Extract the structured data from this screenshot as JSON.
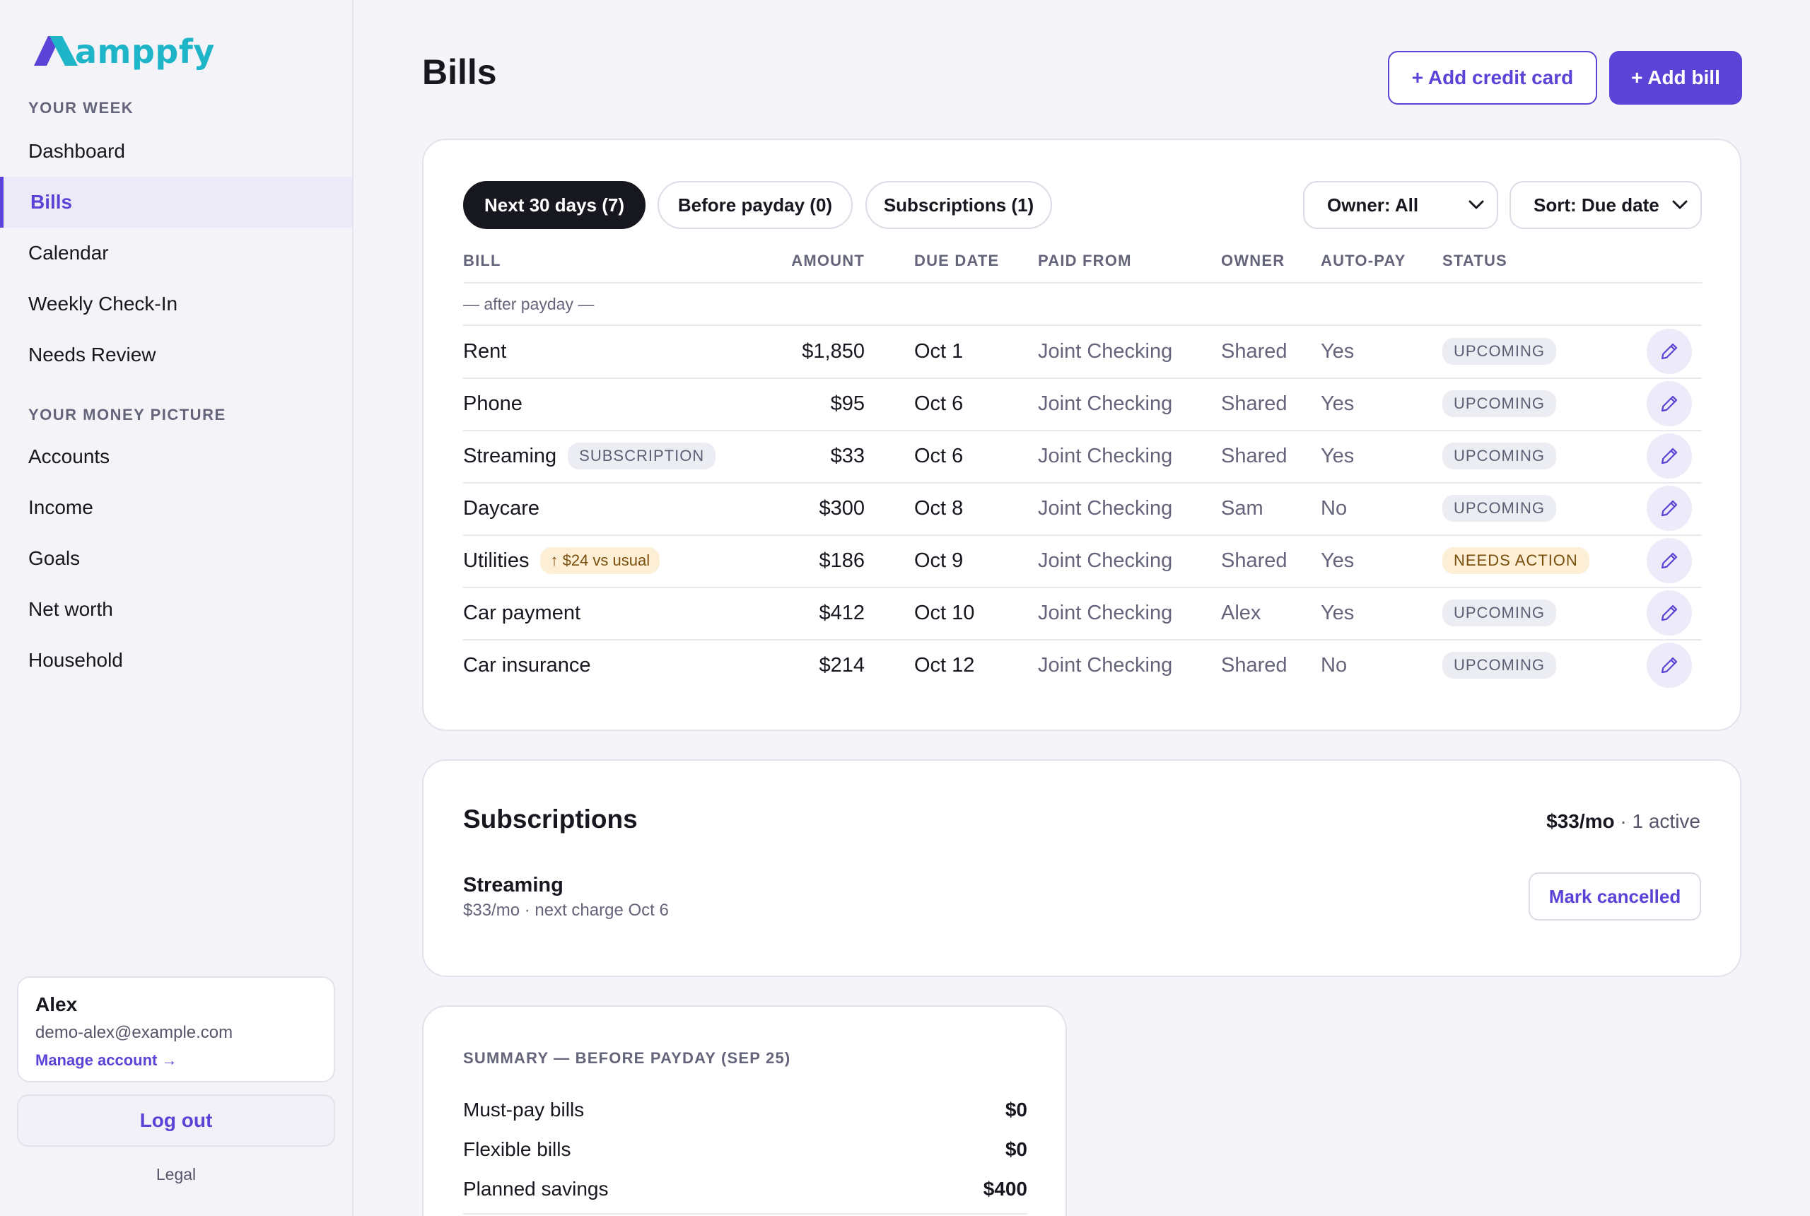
{
  "brand": {
    "name": "amppfy",
    "logo_color": "#5a43d6",
    "accent": "#1fb5c9"
  },
  "sidebar": {
    "week_label": "YOUR WEEK",
    "week_items": [
      {
        "label": "Dashboard",
        "active": false
      },
      {
        "label": "Bills",
        "active": true
      },
      {
        "label": "Calendar",
        "active": false
      },
      {
        "label": "Weekly Check-In",
        "active": false
      },
      {
        "label": "Needs Review",
        "active": false
      }
    ],
    "money_label": "YOUR MONEY PICTURE",
    "money_items": [
      {
        "label": "Accounts"
      },
      {
        "label": "Income"
      },
      {
        "label": "Goals"
      },
      {
        "label": "Net worth"
      },
      {
        "label": "Household"
      }
    ],
    "user": {
      "name": "Alex",
      "email": "demo-alex@example.com",
      "manage_label": "Manage account →"
    },
    "logout_label": "Log out",
    "legal_label": "Legal"
  },
  "header": {
    "title": "Bills",
    "add_card_label": "+ Add credit card",
    "add_bill_label": "+ Add bill"
  },
  "bills": {
    "tabs": [
      {
        "label": "Next 30 days (7)",
        "active": true
      },
      {
        "label": "Before payday (0)",
        "active": false
      },
      {
        "label": "Subscriptions (1)",
        "active": false
      }
    ],
    "owner_select": "Owner: All",
    "sort_select": "Sort: Due date",
    "columns": [
      "BILL",
      "AMOUNT",
      "DUE DATE",
      "PAID FROM",
      "OWNER",
      "AUTO-PAY",
      "STATUS"
    ],
    "group_label": "— after payday —",
    "rows": [
      {
        "bill": "Rent",
        "tag": "",
        "alert": "",
        "amount": "$1,850",
        "due": "Oct 1",
        "paid_from": "Joint Checking",
        "owner": "Shared",
        "autopay": "Yes",
        "status": "UPCOMING",
        "status_kind": "neutral"
      },
      {
        "bill": "Phone",
        "tag": "",
        "alert": "",
        "amount": "$95",
        "due": "Oct 6",
        "paid_from": "Joint Checking",
        "owner": "Shared",
        "autopay": "Yes",
        "status": "UPCOMING",
        "status_kind": "neutral"
      },
      {
        "bill": "Streaming",
        "tag": "SUBSCRIPTION",
        "alert": "",
        "amount": "$33",
        "due": "Oct 6",
        "paid_from": "Joint Checking",
        "owner": "Shared",
        "autopay": "Yes",
        "status": "UPCOMING",
        "status_kind": "neutral"
      },
      {
        "bill": "Daycare",
        "tag": "",
        "alert": "",
        "amount": "$300",
        "due": "Oct 8",
        "paid_from": "Joint Checking",
        "owner": "Sam",
        "autopay": "No",
        "status": "UPCOMING",
        "status_kind": "neutral"
      },
      {
        "bill": "Utilities",
        "tag": "",
        "alert": "↑ $24 vs usual",
        "amount": "$186",
        "due": "Oct 9",
        "paid_from": "Joint Checking",
        "owner": "Shared",
        "autopay": "Yes",
        "status": "NEEDS ACTION",
        "status_kind": "warn"
      },
      {
        "bill": "Car payment",
        "tag": "",
        "alert": "",
        "amount": "$412",
        "due": "Oct 10",
        "paid_from": "Joint Checking",
        "owner": "Alex",
        "autopay": "Yes",
        "status": "UPCOMING",
        "status_kind": "neutral"
      },
      {
        "bill": "Car insurance",
        "tag": "",
        "alert": "",
        "amount": "$214",
        "due": "Oct 12",
        "paid_from": "Joint Checking",
        "owner": "Shared",
        "autopay": "No",
        "status": "UPCOMING",
        "status_kind": "neutral"
      }
    ]
  },
  "subscriptions": {
    "title": "Subscriptions",
    "total": "$33/mo",
    "active_count": "· 1 active",
    "item_name": "Streaming",
    "item_detail": "$33/mo · next charge Oct 6",
    "cancel_label": "Mark cancelled"
  },
  "summary": {
    "title": "SUMMARY — BEFORE PAYDAY (SEP 25)",
    "rows": [
      {
        "label": "Must-pay bills",
        "value": "$0"
      },
      {
        "label": "Flexible bills",
        "value": "$0"
      },
      {
        "label": "Planned savings",
        "value": "$400"
      }
    ]
  }
}
